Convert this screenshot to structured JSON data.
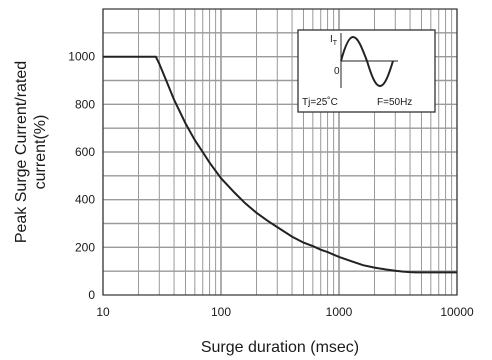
{
  "chart_data": {
    "type": "line",
    "xlabel": "Surge duration (msec)",
    "ylabel_line1": "Peak Surge Current/rated",
    "ylabel_line2": "current(%)",
    "x_scale": "log",
    "xlim": [
      10,
      10000
    ],
    "ylim": [
      0,
      1200
    ],
    "grid": true,
    "x_ticks": [
      10,
      100,
      1000,
      10000
    ],
    "y_ticks": [
      0,
      200,
      400,
      600,
      800,
      1000
    ],
    "series": [
      {
        "x": [
          10,
          28,
          30,
          35,
          40,
          50,
          60,
          70,
          80,
          100,
          130,
          160,
          200,
          250,
          300,
          400,
          500,
          600,
          700,
          800,
          1000,
          1300,
          1600,
          2000,
          2500,
          3000,
          3500,
          4000,
          4500,
          5000,
          6000,
          8000
        ],
        "values": [
          1000,
          1000,
          970,
          890,
          820,
          720,
          650,
          600,
          555,
          490,
          430,
          385,
          345,
          310,
          285,
          245,
          220,
          205,
          190,
          180,
          160,
          140,
          125,
          115,
          107,
          102,
          98,
          96,
          95,
          95,
          95,
          95
        ]
      }
    ],
    "inset": {
      "current_symbol": "I",
      "current_subscript": "T",
      "zero_label": "0",
      "temperature_label": "Tj=25˚C",
      "frequency_label": "F=50Hz"
    }
  },
  "colors": {
    "grid": "#9a9a9a",
    "axis": "#333333",
    "curve": "#222222"
  }
}
